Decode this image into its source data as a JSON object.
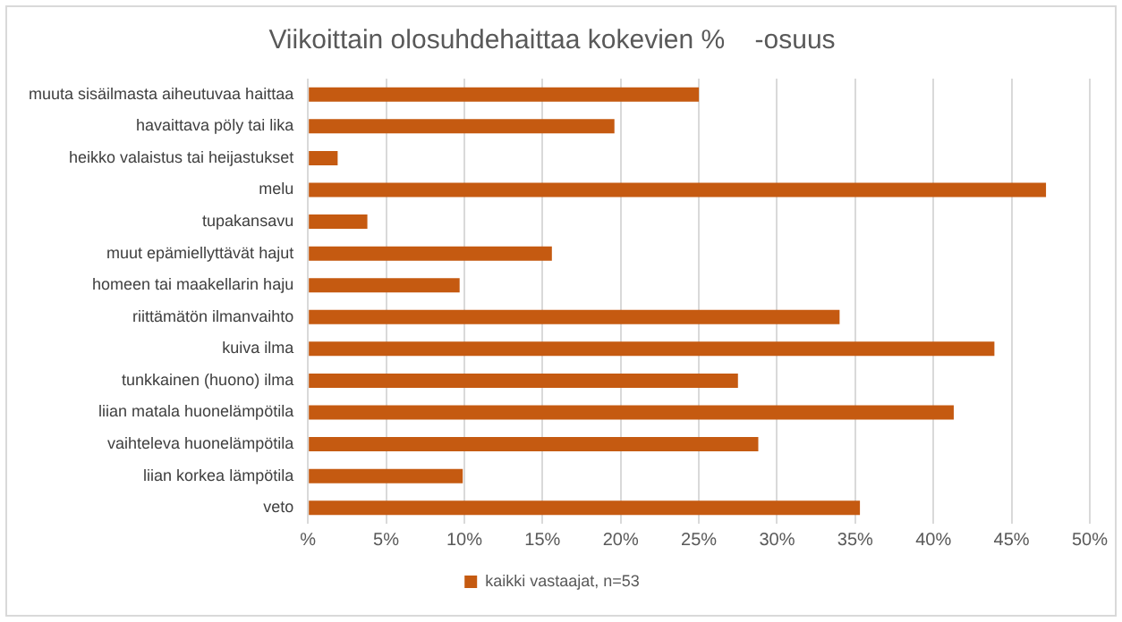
{
  "chart_data": {
    "type": "bar",
    "orientation": "horizontal",
    "title": "Viikoittain olosuhdehaittaa kokevien %    -osuus",
    "categories": [
      "muuta sisäilmasta aiheutuvaa haittaa",
      "havaittava pöly tai lika",
      "heikko valaistus tai heijastukset",
      "melu",
      "tupakansavu",
      "muut epämiellyttävät hajut",
      "homeen tai maakellarin haju",
      "riittämätön ilmanvaihto",
      "kuiva ilma",
      "tunkkainen (huono) ilma",
      "liian matala huonelämpötila",
      "vaihteleva huonelämpötila",
      "liian korkea lämpötila",
      "veto"
    ],
    "series": [
      {
        "name": "kaikki vastaajat, n=53",
        "color": "#c55a11",
        "values": [
          25.0,
          19.6,
          1.9,
          47.2,
          3.8,
          15.6,
          9.7,
          34.0,
          43.9,
          27.5,
          41.3,
          28.8,
          9.9,
          35.3
        ]
      }
    ],
    "xlim": [
      0,
      50
    ],
    "xticks": [
      {
        "value": 0,
        "label": "%"
      },
      {
        "value": 5,
        "label": "5%"
      },
      {
        "value": 10,
        "label": "10%"
      },
      {
        "value": 15,
        "label": "15%"
      },
      {
        "value": 20,
        "label": "20%"
      },
      {
        "value": 25,
        "label": "25%"
      },
      {
        "value": 30,
        "label": "30%"
      },
      {
        "value": 35,
        "label": "35%"
      },
      {
        "value": 40,
        "label": "40%"
      },
      {
        "value": 45,
        "label": "45%"
      },
      {
        "value": 50,
        "label": "50%"
      }
    ],
    "grid": "x",
    "legend": "bottom"
  }
}
